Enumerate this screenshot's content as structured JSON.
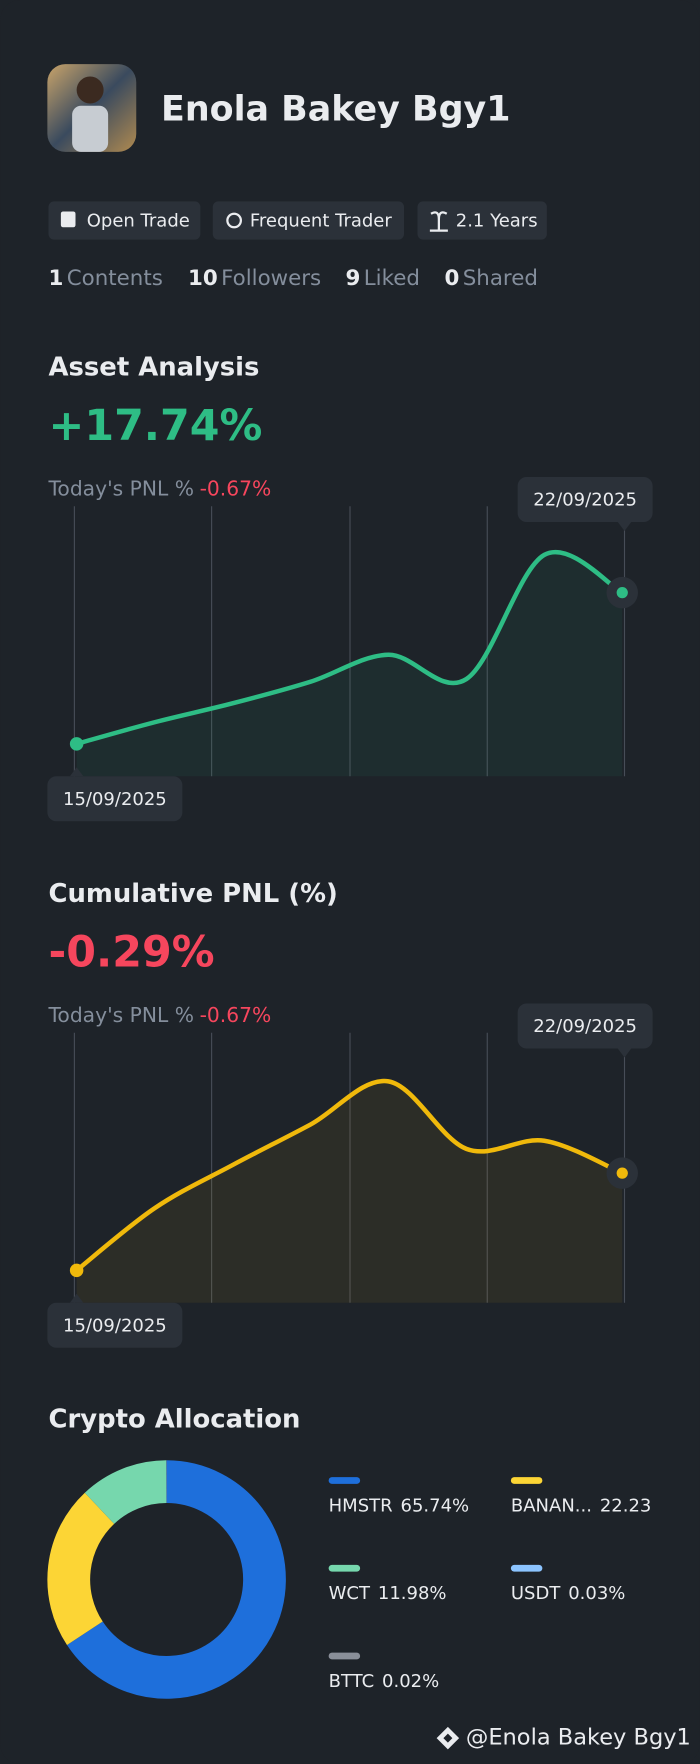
{
  "profile": {
    "name": "Enola Bakey Bgy1",
    "badges": [
      "Open Trade",
      "Frequent Trader",
      "2.1 Years"
    ],
    "stats": [
      {
        "value": 1,
        "label": "Contents"
      },
      {
        "value": 10,
        "label": "Followers"
      },
      {
        "value": 9,
        "label": "Liked"
      },
      {
        "value": 0,
        "label": "Shared"
      }
    ]
  },
  "chart_data": [
    {
      "type": "line",
      "title": "Asset Analysis",
      "headline": "+17.74%",
      "subtitle_label": "Today's PNL %",
      "subtitle_value": "-0.67%",
      "categories": [
        "15/09/2025",
        null,
        null,
        null,
        null,
        null,
        null,
        "22/09/2025"
      ],
      "series": [
        {
          "color": "#2ebd85",
          "values": [
            12,
            20,
            27,
            35,
            45,
            36,
            82,
            68
          ]
        }
      ],
      "ylim": [
        0,
        100
      ]
    },
    {
      "type": "line",
      "title": "Cumulative PNL (%)",
      "headline": "-0.29%",
      "subtitle_label": "Today's PNL %",
      "subtitle_value": "-0.67%",
      "categories": [
        "15/09/2025",
        null,
        null,
        null,
        null,
        null,
        null,
        "22/09/2025"
      ],
      "series": [
        {
          "color": "#f0b90b",
          "values": [
            12,
            35,
            51,
            66,
            82,
            57,
            60,
            48
          ]
        }
      ],
      "ylim": [
        0,
        100
      ]
    },
    {
      "type": "donut",
      "title": "Crypto Allocation",
      "categories": [
        "HMSTR",
        "BANAN...",
        "WCT",
        "USDT",
        "BTTC"
      ],
      "values": [
        65.74,
        22.23,
        11.98,
        0.03,
        0.02
      ],
      "value_labels": [
        "65.74%",
        "22.23",
        "11.98%",
        "0.03%",
        "0.02%"
      ],
      "colors": [
        "#1e6fdb",
        "#fcd535",
        "#76d7ad",
        "#8cc4ff",
        "#8a8f99"
      ]
    }
  ],
  "footer": "@Enola Bakey Bgy1"
}
